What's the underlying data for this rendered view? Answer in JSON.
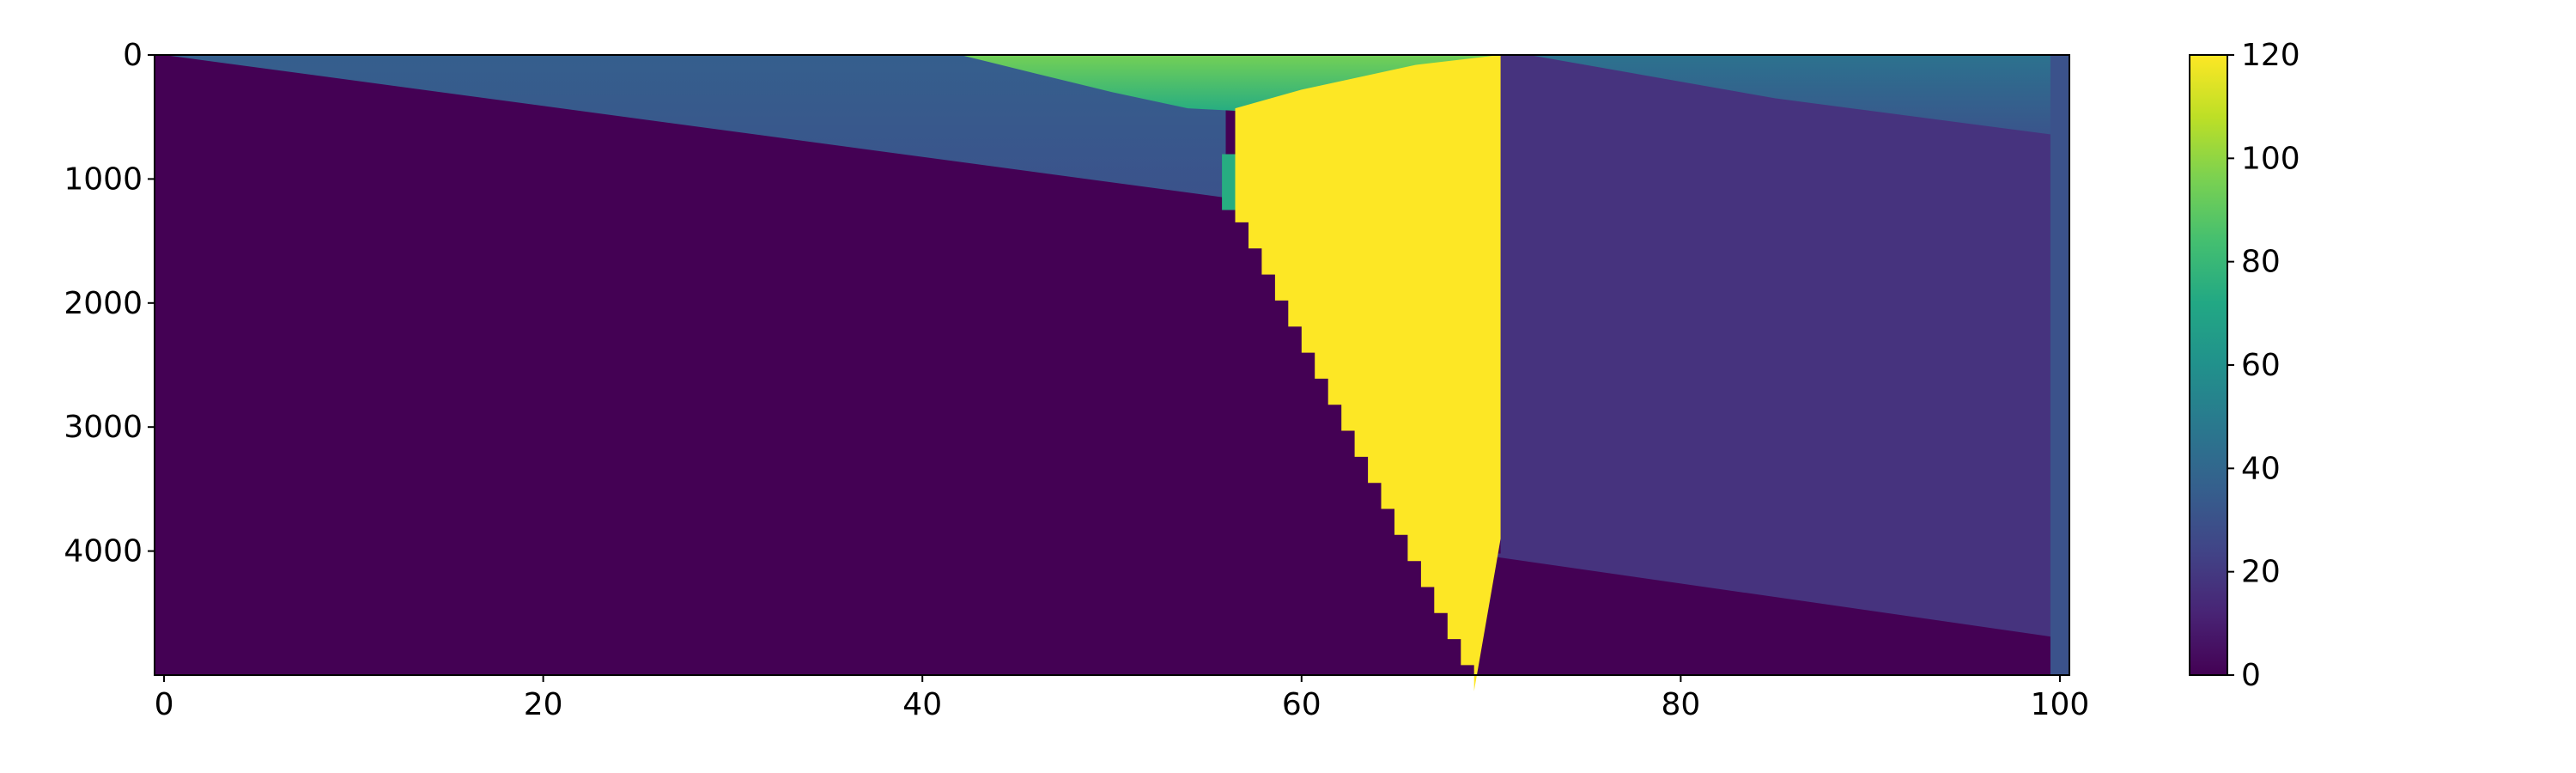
{
  "chart_data": {
    "type": "heatmap",
    "title": "",
    "xlabel": "",
    "ylabel": "",
    "colormap": "viridis",
    "y_axis_inverted": true,
    "xlim": [
      -0.5,
      100.5
    ],
    "ylim": [
      0,
      5000
    ],
    "clim": [
      0,
      120
    ],
    "x_ticks": [
      "0",
      "20",
      "40",
      "60",
      "80",
      "100"
    ],
    "y_ticks": [
      "0",
      "1000",
      "2000",
      "3000",
      "4000"
    ],
    "colorbar_ticks": [
      "0",
      "20",
      "40",
      "60",
      "80",
      "100",
      "120"
    ],
    "regions": [
      {
        "name": "deep-low",
        "value": 0
      },
      {
        "name": "upper-wedge",
        "value_range": [
          20,
          35
        ]
      },
      {
        "name": "top-plume",
        "value_range": [
          60,
          90
        ]
      },
      {
        "name": "saturated-wedge",
        "value": 120
      },
      {
        "name": "right-block",
        "value": 18
      },
      {
        "name": "right-edge-column",
        "value": 30
      }
    ],
    "boundaries": {
      "upper_wedge_bottom": [
        [
          0,
          0
        ],
        [
          56,
          1150
        ],
        [
          100,
          1150
        ]
      ],
      "plume_bottom": [
        [
          42,
          0
        ],
        [
          56,
          450
        ],
        [
          70,
          0
        ]
      ],
      "saturated_left_edge": [
        [
          56.5,
          430
        ],
        [
          56.5,
          1350
        ],
        [
          69,
          4000
        ]
      ],
      "saturated_right_edge_x": 70.5,
      "lower_bottom_right": [
        [
          69,
          4000
        ],
        [
          100,
          4700
        ]
      ]
    }
  }
}
